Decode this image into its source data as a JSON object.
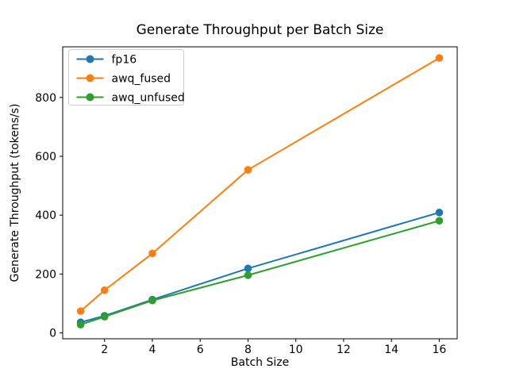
{
  "chart_data": {
    "type": "line",
    "title": "Generate Throughput per Batch Size",
    "xlabel": "Batch Size",
    "ylabel": "Generate Throughput (tokens/s)",
    "x": [
      1,
      2,
      4,
      8,
      16
    ],
    "series": [
      {
        "name": "fp16",
        "color": "#1f77b4",
        "values": [
          36,
          58,
          113,
          219,
          409
        ]
      },
      {
        "name": "awq_fused",
        "color": "#ff7f0e",
        "values": [
          74,
          145,
          270,
          554,
          934
        ]
      },
      {
        "name": "awq_unfused",
        "color": "#2ca02c",
        "values": [
          28,
          55,
          110,
          196,
          381
        ]
      }
    ],
    "xticks": [
      2,
      4,
      6,
      8,
      10,
      12,
      14,
      16
    ],
    "yticks": [
      0,
      200,
      400,
      600,
      800
    ],
    "xlim": [
      0.25,
      16.75
    ],
    "ylim": [
      -20,
      972
    ],
    "legend_position": "upper left",
    "grid": false,
    "marker": "circle",
    "background_color": "#ffffff",
    "spine_color": "#000000",
    "legend_border_color": "#cccccc"
  }
}
